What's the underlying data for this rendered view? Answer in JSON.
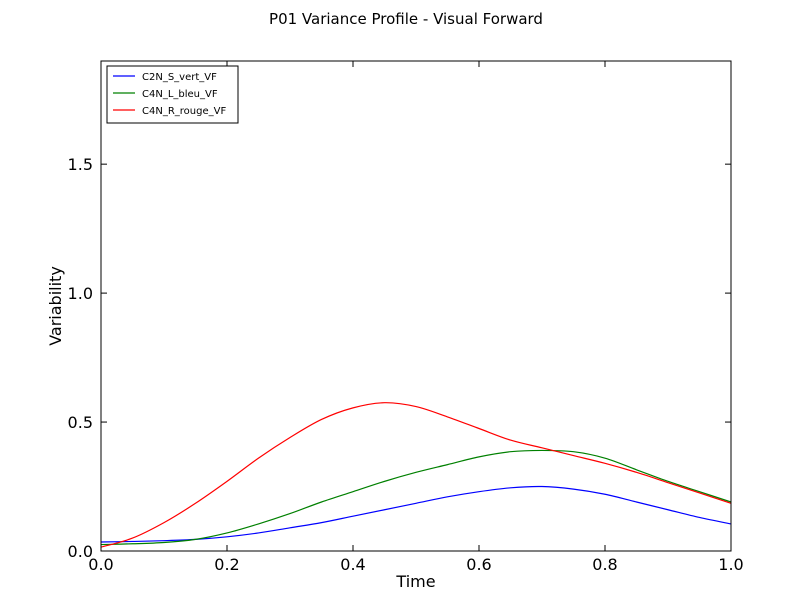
{
  "chart_data": {
    "type": "line",
    "title": "P01 Variance Profile - Visual Forward",
    "xlabel": "Time",
    "ylabel": "Variability",
    "xlim": [
      0.0,
      1.0
    ],
    "ylim": [
      0.0,
      1.9
    ],
    "xticks": [
      0.0,
      0.2,
      0.4,
      0.6,
      0.8,
      1.0
    ],
    "xtick_labels": [
      "0.0",
      "0.2",
      "0.4",
      "0.6",
      "0.8",
      "1.0"
    ],
    "yticks": [
      0.0,
      0.5,
      1.0,
      1.5
    ],
    "ytick_labels": [
      "0.0",
      "0.5",
      "1.0",
      "1.5"
    ],
    "grid": false,
    "legend_position": "top-left",
    "series": [
      {
        "name": "C2N_S_vert_VF",
        "color": "#0000ff",
        "x": [
          0.0,
          0.05,
          0.1,
          0.15,
          0.2,
          0.25,
          0.3,
          0.35,
          0.4,
          0.45,
          0.5,
          0.55,
          0.6,
          0.65,
          0.7,
          0.75,
          0.8,
          0.85,
          0.9,
          0.95,
          1.0
        ],
        "y": [
          0.035,
          0.037,
          0.04,
          0.045,
          0.055,
          0.07,
          0.09,
          0.11,
          0.135,
          0.16,
          0.185,
          0.21,
          0.23,
          0.245,
          0.25,
          0.24,
          0.22,
          0.19,
          0.16,
          0.13,
          0.105
        ]
      },
      {
        "name": "C4N_L_bleu_VF",
        "color": "#008000",
        "x": [
          0.0,
          0.05,
          0.1,
          0.15,
          0.2,
          0.25,
          0.3,
          0.35,
          0.4,
          0.45,
          0.5,
          0.55,
          0.6,
          0.65,
          0.7,
          0.75,
          0.8,
          0.85,
          0.9,
          0.95,
          1.0
        ],
        "y": [
          0.025,
          0.028,
          0.033,
          0.045,
          0.07,
          0.105,
          0.145,
          0.19,
          0.23,
          0.27,
          0.305,
          0.335,
          0.365,
          0.385,
          0.39,
          0.385,
          0.36,
          0.315,
          0.27,
          0.23,
          0.19
        ]
      },
      {
        "name": "C4N_R_rouge_VF",
        "color": "#ff0000",
        "x": [
          0.0,
          0.05,
          0.1,
          0.15,
          0.2,
          0.25,
          0.3,
          0.35,
          0.4,
          0.45,
          0.5,
          0.55,
          0.6,
          0.65,
          0.7,
          0.75,
          0.8,
          0.85,
          0.9,
          0.95,
          1.0
        ],
        "y": [
          0.015,
          0.05,
          0.11,
          0.185,
          0.27,
          0.36,
          0.44,
          0.51,
          0.555,
          0.575,
          0.56,
          0.52,
          0.475,
          0.43,
          0.4,
          0.37,
          0.34,
          0.305,
          0.265,
          0.225,
          0.185
        ]
      }
    ]
  }
}
